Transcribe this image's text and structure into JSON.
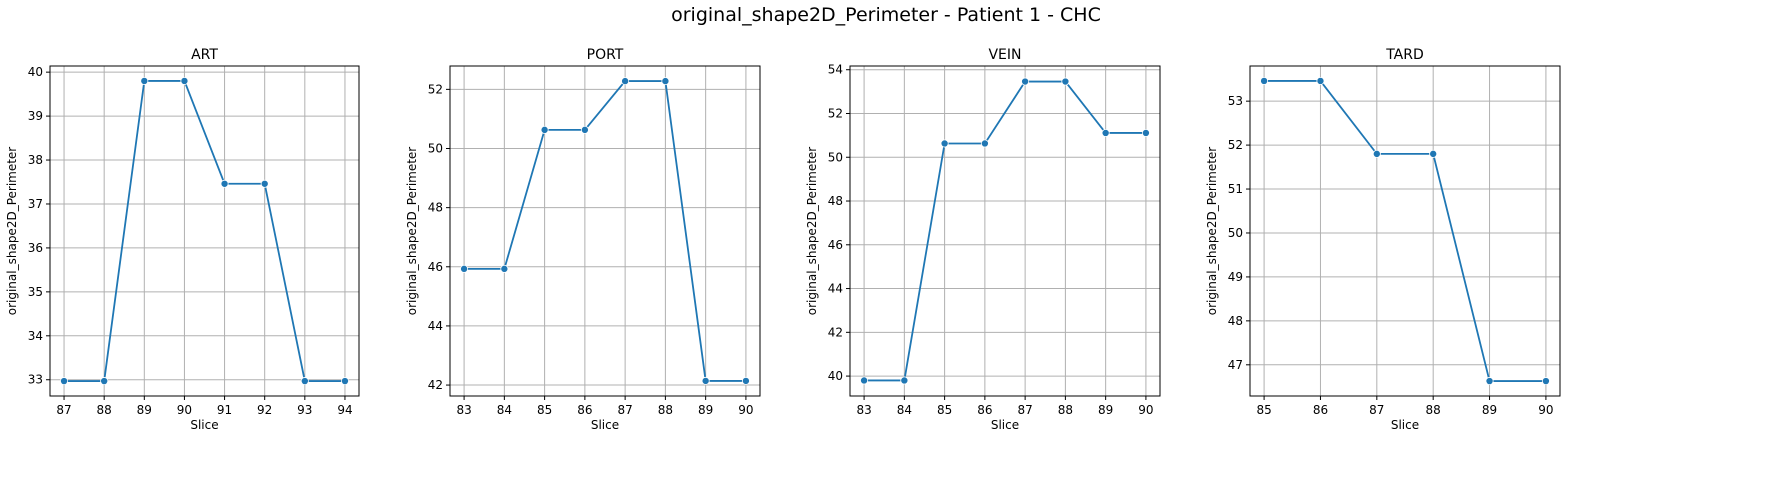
{
  "figure": {
    "title": "original_shape2D_Perimeter - Patient 1 - CHC"
  },
  "style": {
    "line_color": "#1f77b4",
    "grid_color": "#b0b0b0"
  },
  "chart_data": [
    {
      "type": "line",
      "title": "ART",
      "xlabel": "Slice",
      "ylabel": "original_shape2D_Perimeter",
      "x": [
        87,
        88,
        89,
        90,
        91,
        92,
        93,
        94
      ],
      "series": [
        {
          "values": [
            32.97,
            32.97,
            39.8,
            39.8,
            37.46,
            37.46,
            32.97,
            32.97
          ]
        }
      ],
      "xlim": [
        86.65,
        94.35
      ],
      "ylim": [
        32.63,
        40.14
      ],
      "xticks": [
        87,
        88,
        89,
        90,
        91,
        92,
        93,
        94
      ],
      "yticks": [
        33,
        34,
        35,
        36,
        37,
        38,
        39,
        40
      ],
      "grid": true,
      "marker": "circle"
    },
    {
      "type": "line",
      "title": "PORT",
      "xlabel": "Slice",
      "ylabel": "original_shape2D_Perimeter",
      "x": [
        83,
        84,
        85,
        86,
        87,
        88,
        89,
        90
      ],
      "series": [
        {
          "values": [
            45.93,
            45.93,
            50.63,
            50.63,
            52.28,
            52.28,
            42.14,
            42.14
          ]
        }
      ],
      "xlim": [
        82.65,
        90.35
      ],
      "ylim": [
        41.63,
        52.79
      ],
      "xticks": [
        83,
        84,
        85,
        86,
        87,
        88,
        89,
        90
      ],
      "yticks": [
        42,
        44,
        46,
        48,
        50,
        52
      ],
      "grid": true,
      "marker": "circle"
    },
    {
      "type": "line",
      "title": "VEIN",
      "xlabel": "Slice",
      "ylabel": "original_shape2D_Perimeter",
      "x": [
        83,
        84,
        85,
        86,
        87,
        88,
        89,
        90
      ],
      "series": [
        {
          "values": [
            39.8,
            39.8,
            50.63,
            50.63,
            53.46,
            53.46,
            51.11,
            51.11
          ]
        }
      ],
      "xlim": [
        82.65,
        90.35
      ],
      "ylim": [
        39.09,
        54.17
      ],
      "xticks": [
        83,
        84,
        85,
        86,
        87,
        88,
        89,
        90
      ],
      "yticks": [
        40,
        42,
        44,
        46,
        48,
        50,
        52,
        54
      ],
      "grid": true,
      "marker": "circle"
    },
    {
      "type": "line",
      "title": "TARD",
      "xlabel": "Slice",
      "ylabel": "original_shape2D_Perimeter",
      "x": [
        85,
        86,
        87,
        88,
        89,
        90
      ],
      "series": [
        {
          "values": [
            53.46,
            53.46,
            51.8,
            51.8,
            46.63,
            46.63
          ]
        }
      ],
      "xlim": [
        84.75,
        90.25
      ],
      "ylim": [
        46.29,
        53.8
      ],
      "xticks": [
        85,
        86,
        87,
        88,
        89,
        90
      ],
      "yticks": [
        47,
        48,
        49,
        50,
        51,
        52,
        53
      ],
      "grid": true,
      "marker": "circle"
    }
  ]
}
